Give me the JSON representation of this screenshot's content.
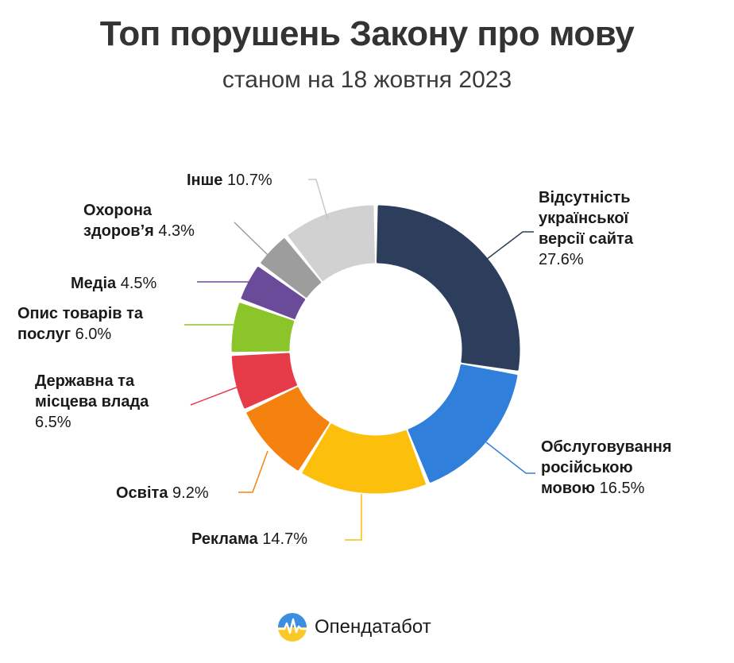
{
  "chart_title": "Топ порушень Закону про мову",
  "chart_subtitle": "станом на 18 жовтня 2023",
  "brand": {
    "name": "Опендатабот",
    "logo_icon": "opendatabot-logo-icon"
  },
  "chart_data": {
    "type": "pie",
    "title": "Топ порушень Закону про мову",
    "subtitle": "станом на 18 жовтня 2023",
    "donut": true,
    "unit": "%",
    "slices": [
      {
        "label": "Відсутність української версії сайта",
        "value": 27.6,
        "value_text": "27.6%",
        "color": "#2d3e5c"
      },
      {
        "label": "Обслуговування російською мовою",
        "value": 16.5,
        "value_text": "16.5%",
        "color": "#2f7fdb"
      },
      {
        "label": "Реклама",
        "value": 14.7,
        "value_text": "14.7%",
        "color": "#fbbf0c"
      },
      {
        "label": "Освіта",
        "value": 9.2,
        "value_text": "9.2%",
        "color": "#f5820f"
      },
      {
        "label": "Державна та місцева влада",
        "value": 6.5,
        "value_text": "6.5%",
        "color": "#e63b48"
      },
      {
        "label": "Опис товарів та послуг",
        "value": 6.0,
        "value_text": "6.0%",
        "color": "#8cc52a"
      },
      {
        "label": "Медіа",
        "value": 4.5,
        "value_text": "4.5%",
        "color": "#6a4b9a"
      },
      {
        "label": "Охорона здоров’я",
        "value": 4.3,
        "value_text": "4.3%",
        "color": "#9d9d9d"
      },
      {
        "label": "Інше",
        "value": 10.7,
        "value_text": "10.7%",
        "color": "#d1d1d1"
      }
    ]
  }
}
